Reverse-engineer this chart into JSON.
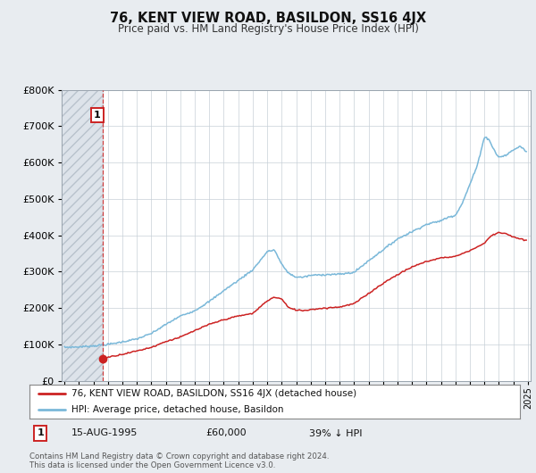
{
  "title": "76, KENT VIEW ROAD, BASILDON, SS16 4JX",
  "subtitle": "Price paid vs. HM Land Registry's House Price Index (HPI)",
  "hpi_color": "#7ab8d9",
  "price_color": "#cc2222",
  "marker_color": "#cc2222",
  "annotation_box_color": "#cc2222",
  "background_color": "#e8ecf0",
  "plot_bg_color": "#ffffff",
  "ylim": [
    0,
    800000
  ],
  "yticks": [
    0,
    100000,
    200000,
    300000,
    400000,
    500000,
    600000,
    700000,
    800000
  ],
  "sale_x_year": 1995.62,
  "sale_price": 60000,
  "xlim_left": 1992.8,
  "xlim_right": 2025.2,
  "legend_entry1": "76, KENT VIEW ROAD, BASILDON, SS16 4JX (detached house)",
  "legend_entry2": "HPI: Average price, detached house, Basildon",
  "footnote1": "Contains HM Land Registry data © Crown copyright and database right 2024.",
  "footnote2": "This data is licensed under the Open Government Licence v3.0.",
  "hpi_anchors_x": [
    1993,
    1994,
    1995,
    1996,
    1997,
    1998,
    1999,
    2000,
    2001,
    2002,
    2003,
    2004,
    2005,
    2006,
    2007,
    2007.5,
    2008,
    2008.5,
    2009,
    2009.5,
    2010,
    2011,
    2012,
    2013,
    2014,
    2015,
    2016,
    2017,
    2018,
    2019,
    2019.5,
    2020,
    2020.5,
    2021,
    2021.5,
    2022,
    2022.3,
    2022.8,
    2023,
    2023.5,
    2024,
    2024.5,
    2024.9
  ],
  "hpi_anchors_y": [
    92000,
    93000,
    96000,
    100000,
    107000,
    115000,
    130000,
    155000,
    178000,
    193000,
    218000,
    248000,
    276000,
    305000,
    355000,
    360000,
    320000,
    295000,
    285000,
    285000,
    290000,
    292000,
    293000,
    298000,
    330000,
    360000,
    390000,
    410000,
    430000,
    440000,
    450000,
    455000,
    490000,
    540000,
    590000,
    670000,
    665000,
    625000,
    615000,
    620000,
    635000,
    645000,
    630000
  ],
  "price_anchors_x": [
    1995.62,
    1996,
    1997,
    1998,
    1999,
    2000,
    2001,
    2002,
    2003,
    2004,
    2005,
    2006,
    2007,
    2007.5,
    2008,
    2008.5,
    2009,
    2009.5,
    2010,
    2011,
    2012,
    2013,
    2014,
    2015,
    2016,
    2017,
    2018,
    2019,
    2020,
    2021,
    2022,
    2022.5,
    2023,
    2023.5,
    2024,
    2024.5,
    2024.9
  ],
  "price_anchors_y": [
    60000,
    65000,
    73000,
    82000,
    92000,
    108000,
    120000,
    138000,
    155000,
    168000,
    178000,
    185000,
    220000,
    230000,
    225000,
    200000,
    195000,
    193000,
    196000,
    200000,
    203000,
    212000,
    240000,
    268000,
    292000,
    313000,
    328000,
    338000,
    342000,
    358000,
    378000,
    400000,
    408000,
    405000,
    395000,
    390000,
    385000
  ]
}
